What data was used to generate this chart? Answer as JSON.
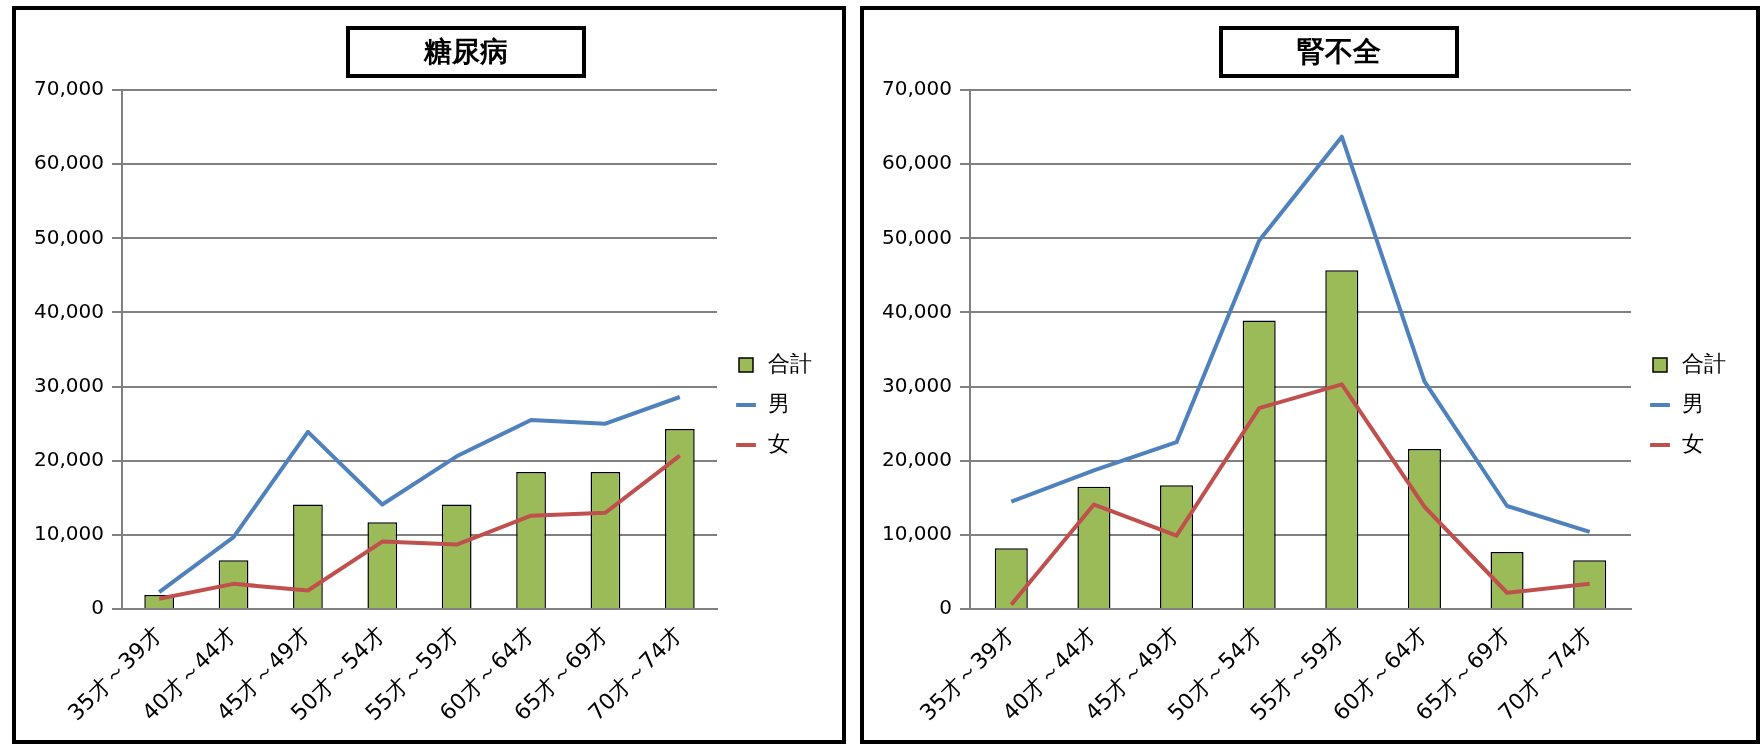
{
  "chart_data": [
    {
      "type": "bar",
      "title": "糖尿病",
      "categories": [
        "35才～39才",
        "40才～44才",
        "45才～49才",
        "50才～54才",
        "55才～59才",
        "60才～64才",
        "65才～69才",
        "70才～74才"
      ],
      "series": [
        {
          "name": "合計",
          "color": "#9bbb59",
          "values": [
            1900,
            6600,
            14100,
            11700,
            14100,
            18500,
            18500,
            24300
          ]
        },
        {
          "name": "男",
          "type": "line",
          "color": "#4f81bd",
          "values": [
            2300,
            9700,
            23900,
            14100,
            20600,
            25500,
            25000,
            28600
          ]
        },
        {
          "name": "女",
          "type": "line",
          "color": "#c0504d",
          "values": [
            1400,
            3400,
            2500,
            9100,
            8700,
            12600,
            13000,
            20700
          ]
        }
      ],
      "ylim": [
        0,
        70000
      ],
      "yticks": [
        0,
        {
          "value": 10000,
          "label": "10,000"
        },
        {
          "value": 20000,
          "label": "20,000"
        },
        {
          "value": 30000,
          "label": "30,000"
        },
        {
          "value": 40000,
          "label": "40,000"
        },
        {
          "value": 50000,
          "label": "50,000"
        },
        {
          "value": 60000,
          "label": "60,000"
        },
        {
          "value": 70000,
          "label": "70,000"
        }
      ],
      "grid": "y",
      "legend": "right",
      "marker": "none"
    },
    {
      "type": "bar",
      "title": "腎不全",
      "categories": [
        "35才～39才",
        "40才～44才",
        "45才～49才",
        "50才～54才",
        "55才～59才",
        "60才～64才",
        "65才～69才",
        "70才～74才"
      ],
      "series": [
        {
          "name": "合計",
          "color": "#9bbb59",
          "values": [
            8200,
            16500,
            16700,
            38900,
            45700,
            21600,
            7700,
            6600
          ]
        },
        {
          "name": "男",
          "type": "line",
          "color": "#4f81bd",
          "values": [
            14500,
            18700,
            22500,
            49700,
            63700,
            30700,
            13900,
            10400
          ]
        },
        {
          "name": "女",
          "type": "line",
          "color": "#c0504d",
          "values": [
            600,
            14100,
            9900,
            27100,
            30300,
            13800,
            2200,
            3400
          ]
        }
      ],
      "ylim": [
        0,
        70000
      ],
      "yticks": [
        0,
        {
          "value": 10000,
          "label": "10,000"
        },
        {
          "value": 20000,
          "label": "20,000"
        },
        {
          "value": 30000,
          "label": "30,000"
        },
        {
          "value": 40000,
          "label": "40,000"
        },
        {
          "value": 50000,
          "label": "50,000"
        },
        {
          "value": 60000,
          "label": "60,000"
        },
        {
          "value": 70000,
          "label": "70,000"
        }
      ],
      "grid": "y",
      "legend": "right",
      "marker": "none"
    }
  ]
}
